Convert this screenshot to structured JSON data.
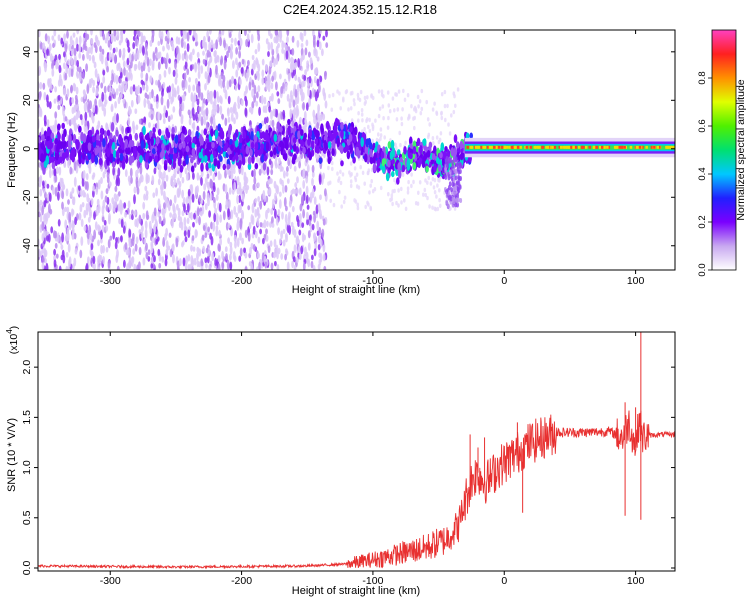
{
  "window_title": "C2E4.2024.352.15.12.R18",
  "chart_data": [
    {
      "type": "heatmap",
      "title": "C2E4.2024.352.15.12.R18",
      "xlabel": "Height of straight line (km)",
      "ylabel": "Frequency (Hz)",
      "xlim": [
        -355,
        130
      ],
      "ylim": [
        -50,
        49
      ],
      "xticks": [
        -300,
        -200,
        -100,
        0,
        100
      ],
      "yticks": [
        -40,
        -20,
        0,
        20,
        40
      ],
      "grid": false,
      "colorbar": {
        "label": "Normalized spectral amplitude",
        "range": [
          0.0,
          1.0
        ],
        "ticks": [
          "0.0",
          "0.2",
          "0.4",
          "0.6",
          "0.8"
        ],
        "colors": [
          "#ffffff",
          "#c8a8f0",
          "#7a00ff",
          "#2020ff",
          "#00c8ff",
          "#00e070",
          "#50f000",
          "#e0ff00",
          "#ff9000",
          "#ff2020",
          "#ff40c0"
        ]
      },
      "description_points": [
        {
          "x": -340,
          "f": 0
        },
        {
          "x": -300,
          "f": 0
        },
        {
          "x": -250,
          "f": 0
        },
        {
          "x": -200,
          "f": 1
        },
        {
          "x": -150,
          "f": 3
        },
        {
          "x": -120,
          "f": 4
        },
        {
          "x": -100,
          "f": -2
        },
        {
          "x": -80,
          "f": -7
        },
        {
          "x": -65,
          "f": -2
        },
        {
          "x": -50,
          "f": -5
        },
        {
          "x": -40,
          "f": -4
        },
        {
          "x": -30,
          "f": 0
        },
        {
          "x": -10,
          "f": 0.5
        },
        {
          "x": 0,
          "f": 0.5
        },
        {
          "x": 50,
          "f": 0.5
        },
        {
          "x": 100,
          "f": 0.5
        },
        {
          "x": 130,
          "f": 0.5
        }
      ]
    },
    {
      "type": "line",
      "xlabel": "Height of straight line (km)",
      "ylabel": "SNR (10 * V/V)",
      "y_multiplier": "(x10",
      "y_multiplier_exp": "4",
      "y_multiplier_close": ")",
      "xlim": [
        -355,
        130
      ],
      "ylim": [
        -0.03,
        2.35
      ],
      "xticks": [
        -300,
        -200,
        -100,
        0,
        100
      ],
      "yticks": [
        "0.0",
        "0.5",
        "1.0",
        "1.5",
        "2.0"
      ],
      "ytick_values": [
        0.0,
        0.5,
        1.0,
        1.5,
        2.0
      ],
      "grid": false,
      "series": [
        {
          "color": "#e83030",
          "x": [
            -355,
            -300,
            -250,
            -200,
            -150,
            -120,
            -100,
            -80,
            -60,
            -45,
            -35,
            -28,
            -24,
            -20,
            -15,
            -10,
            -5,
            0,
            10,
            20,
            30,
            40,
            60,
            80,
            90,
            95,
            100,
            103,
            105,
            110,
            120,
            130
          ],
          "y": [
            0.02,
            0.015,
            0.01,
            0.015,
            0.02,
            0.04,
            0.08,
            0.14,
            0.2,
            0.28,
            0.42,
            0.75,
            0.9,
            0.95,
            0.85,
            0.9,
            1.0,
            1.05,
            1.15,
            1.25,
            1.3,
            1.35,
            1.35,
            1.36,
            1.3,
            1.45,
            1.2,
            1.5,
            1.3,
            1.32,
            1.33,
            1.33
          ]
        }
      ],
      "spikes": [
        {
          "x": -26,
          "y": 1.33
        },
        {
          "x": -20,
          "y": 1.2
        },
        {
          "x": -15,
          "y": 1.3
        },
        {
          "x": 10,
          "y": 1.45
        },
        {
          "x": 14,
          "y": 0.55
        },
        {
          "x": 92,
          "y": 1.65
        },
        {
          "x": 92,
          "y": 0.52
        },
        {
          "x": 100,
          "y": 1.6
        },
        {
          "x": 104,
          "y": 2.35
        },
        {
          "x": 104,
          "y": 0.48
        }
      ]
    }
  ]
}
